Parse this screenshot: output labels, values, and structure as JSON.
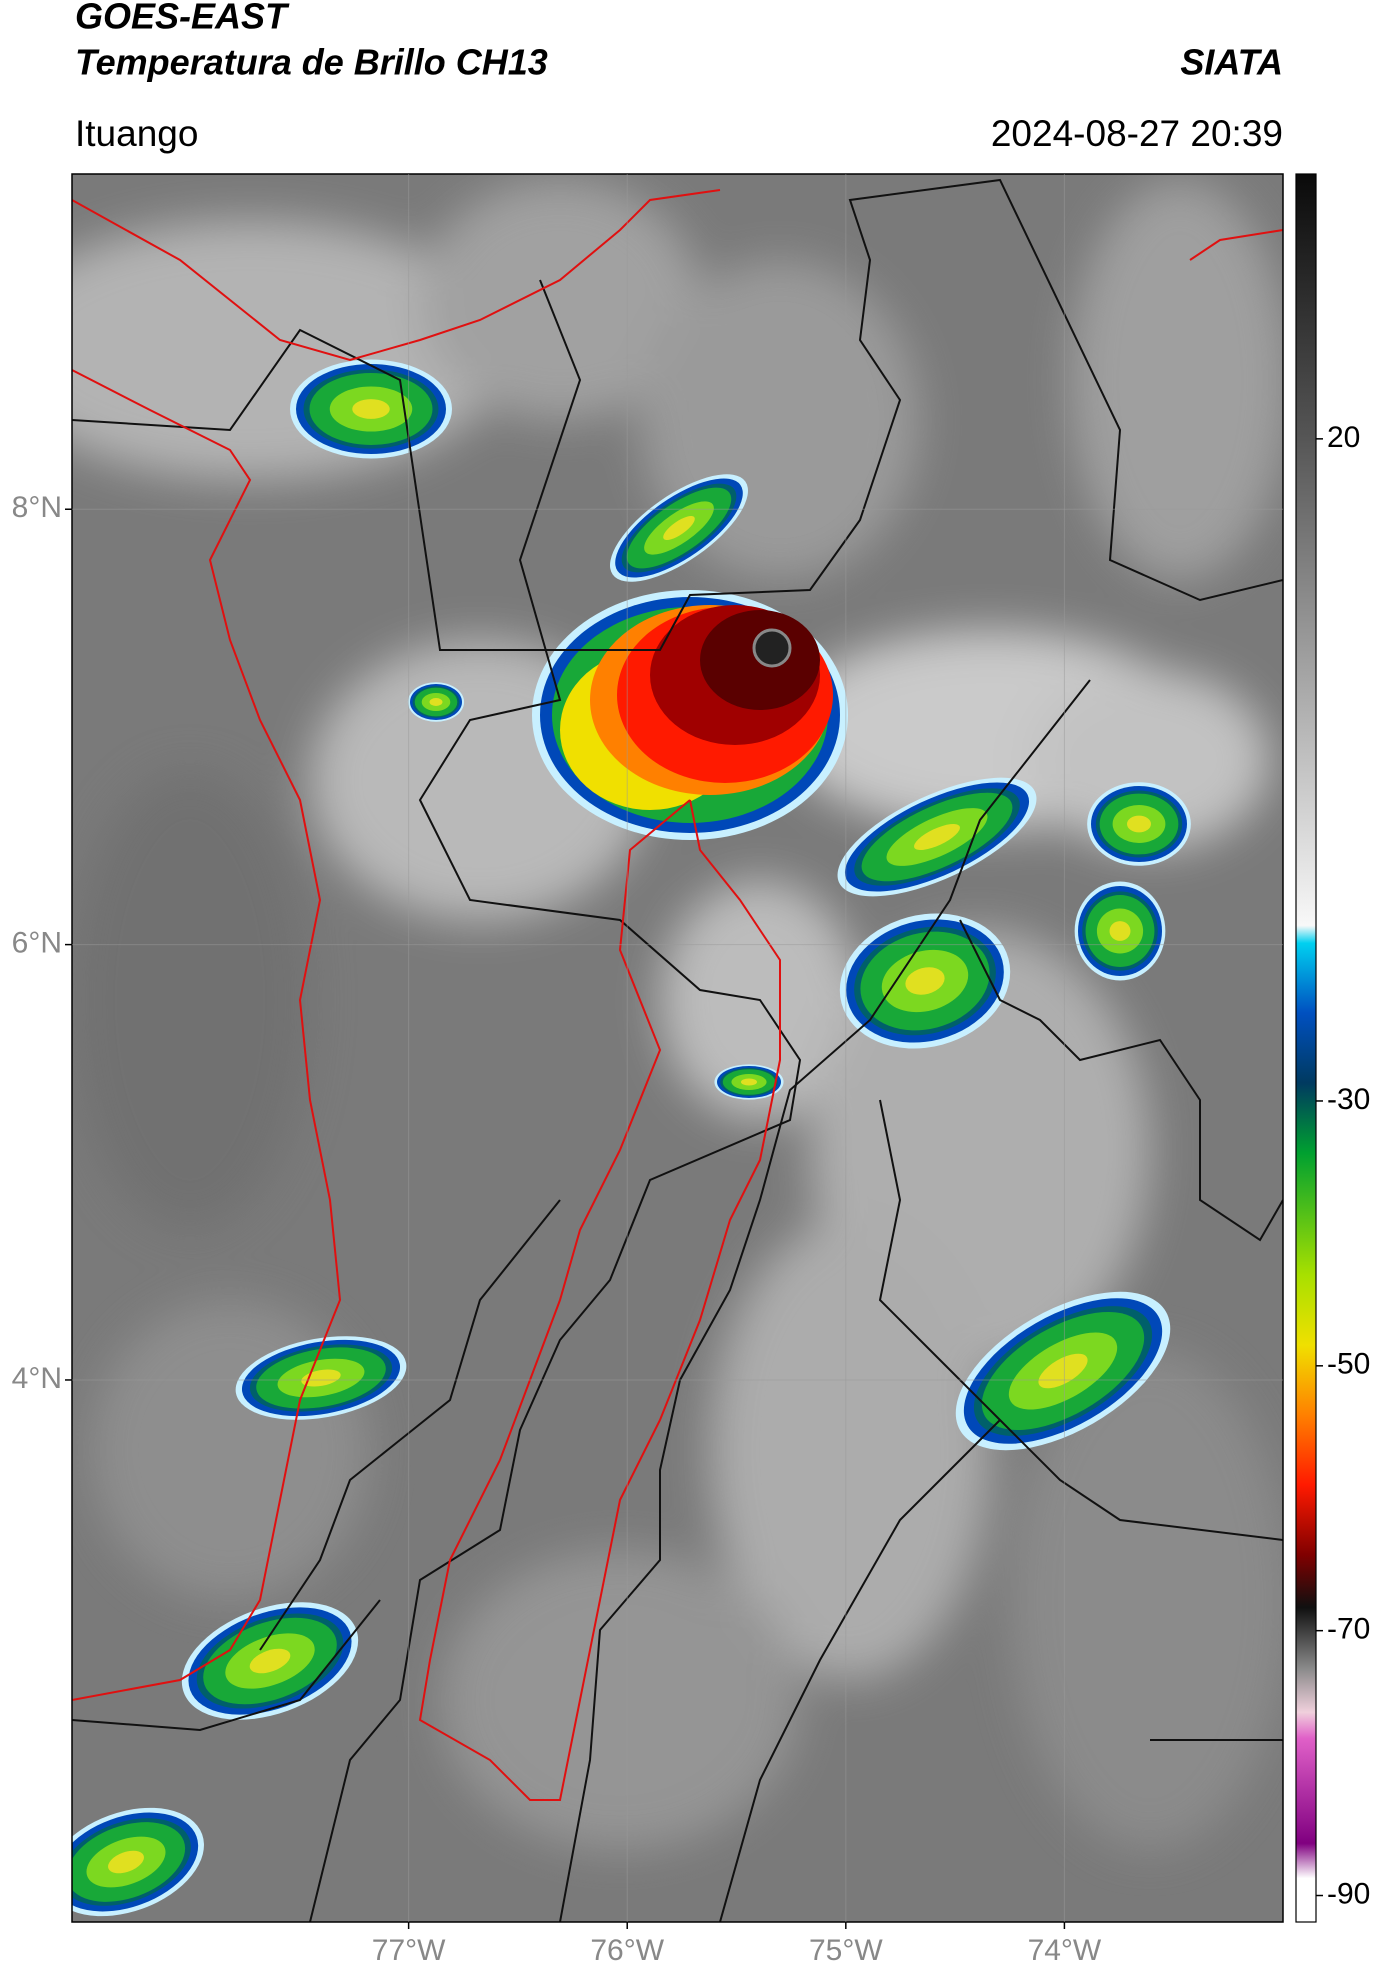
{
  "header": {
    "title": "GOES-EAST",
    "subtitle": "Temperatura de Brillo CH13",
    "source": "SIATA",
    "location": "Ituango",
    "datetime": "2024-08-27 20:39"
  },
  "map": {
    "xlim": [
      -78.54,
      -73.0
    ],
    "ylim": [
      1.51,
      9.54
    ],
    "xticks": [
      {
        "value": -77,
        "label": "77°W"
      },
      {
        "value": -76,
        "label": "76°W"
      },
      {
        "value": -75,
        "label": "75°W"
      },
      {
        "value": -74,
        "label": "74°W"
      }
    ],
    "yticks": [
      {
        "value": 8,
        "label": "8°N"
      },
      {
        "value": 6,
        "label": "6°N"
      },
      {
        "value": 4,
        "label": "4°N"
      }
    ]
  },
  "colorbar": {
    "lim": [
      40,
      -92
    ],
    "ticks": [
      20,
      -30,
      -50,
      -70,
      -90
    ]
  }
}
